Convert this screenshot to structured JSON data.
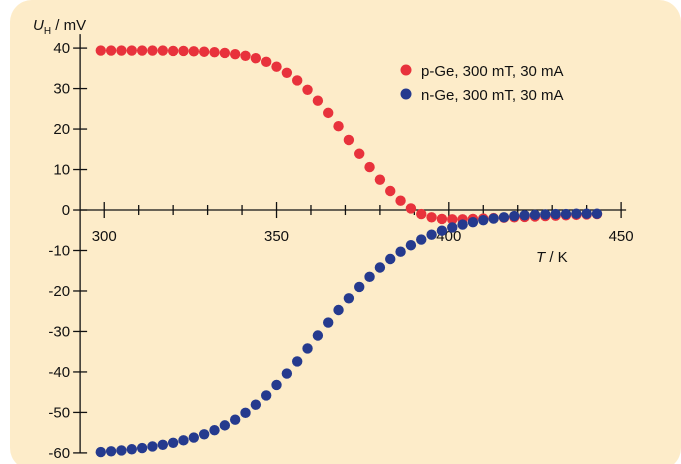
{
  "chart_data": {
    "type": "scatter",
    "background_color": "#fdecc9",
    "axis_color": "#111111",
    "xlabel": {
      "var": "T",
      "unit": " / K"
    },
    "ylabel": {
      "var": "U",
      "sub": "H",
      "unit": " / mV"
    },
    "xlim": [
      295,
      452
    ],
    "ylim": [
      -62,
      42
    ],
    "xticks_major": [
      300,
      350,
      400,
      450
    ],
    "xticks_minor_step": 10,
    "yticks": [
      40,
      30,
      20,
      10,
      0,
      -10,
      -20,
      -30,
      -40,
      -50,
      -60
    ],
    "x_axis_at_y": 0,
    "y_axis_at_x": 293,
    "grid": false,
    "legend_position": "top-right",
    "series": [
      {
        "name": "p-Ge, 300 mT, 30 mA",
        "color": "#e8323c",
        "x": [
          299,
          302,
          305,
          308,
          311,
          314,
          317,
          320,
          323,
          326,
          329,
          332,
          335,
          338,
          341,
          344,
          347,
          350,
          353,
          356,
          359,
          362,
          365,
          368,
          371,
          374,
          377,
          380,
          383,
          386,
          389,
          392,
          395,
          398,
          401,
          404,
          407,
          410,
          413,
          416,
          419,
          422,
          425,
          428,
          431,
          434,
          437,
          440,
          443
        ],
        "y": [
          39.4,
          39.4,
          39.4,
          39.4,
          39.4,
          39.4,
          39.4,
          39.3,
          39.3,
          39.2,
          39.1,
          39.0,
          38.8,
          38.5,
          38.1,
          37.5,
          36.6,
          35.4,
          33.9,
          32.0,
          29.7,
          27.0,
          24.0,
          20.7,
          17.3,
          13.9,
          10.6,
          7.5,
          4.7,
          2.3,
          0.4,
          -1.0,
          -1.8,
          -2.2,
          -2.3,
          -2.3,
          -2.2,
          -2.1,
          -2.0,
          -1.9,
          -1.8,
          -1.7,
          -1.6,
          -1.5,
          -1.4,
          -1.3,
          -1.2,
          -1.1,
          -1.0
        ]
      },
      {
        "name": "n-Ge, 300 mT, 30 mA",
        "color": "#253a8e",
        "x": [
          299,
          302,
          305,
          308,
          311,
          314,
          317,
          320,
          323,
          326,
          329,
          332,
          335,
          338,
          341,
          344,
          347,
          350,
          353,
          356,
          359,
          362,
          365,
          368,
          371,
          374,
          377,
          380,
          383,
          386,
          389,
          392,
          395,
          398,
          401,
          404,
          407,
          410,
          413,
          416,
          419,
          422,
          425,
          428,
          431,
          434,
          437,
          440,
          443
        ],
        "y": [
          -59.8,
          -59.6,
          -59.4,
          -59.1,
          -58.8,
          -58.4,
          -58.0,
          -57.5,
          -56.9,
          -56.2,
          -55.4,
          -54.4,
          -53.2,
          -51.8,
          -50.1,
          -48.1,
          -45.8,
          -43.2,
          -40.4,
          -37.4,
          -34.2,
          -31.0,
          -27.8,
          -24.7,
          -21.8,
          -19.0,
          -16.5,
          -14.2,
          -12.1,
          -10.3,
          -8.7,
          -7.3,
          -6.1,
          -5.1,
          -4.3,
          -3.6,
          -3.0,
          -2.5,
          -2.1,
          -1.8,
          -1.5,
          -1.3,
          -1.2,
          -1.1,
          -1.0,
          -1.0,
          -0.9,
          -0.9,
          -0.9
        ]
      }
    ]
  }
}
